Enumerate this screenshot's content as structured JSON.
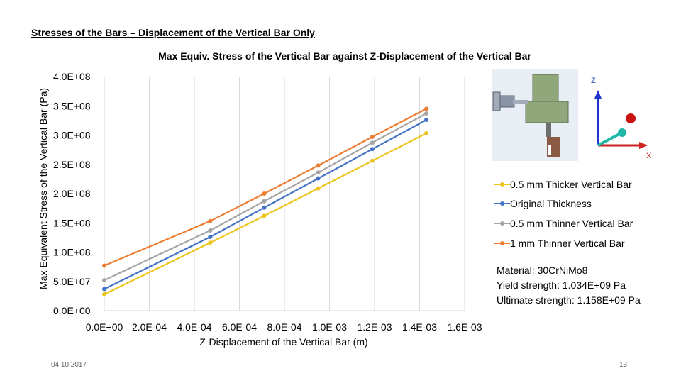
{
  "slide": {
    "title": "Stresses of the Bars – Displacement of the Vertical Bar Only",
    "date": "04.10.2017",
    "page_number": "13"
  },
  "material": {
    "line1": "Material: 30CrNiMo8",
    "line2": "Yield strength: 1.034E+09 Pa",
    "line3": "Ultimate strength: 1.158E+09 Pa"
  },
  "figure": {
    "axis_labels": {
      "z": "Z",
      "x": "X"
    }
  },
  "chart_data": {
    "type": "line",
    "title": "Max Equiv. Stress of the Vertical Bar against Z-Displacement of the Vertical Bar",
    "xlabel": "Z-Displacement of the Vertical Bar (m)",
    "ylabel": "Max Equivalent Stress of the Vertical Bar (Pa)",
    "xlim": [
      0,
      0.0016
    ],
    "ylim": [
      0,
      400000000
    ],
    "x_ticks": [
      0,
      0.0002,
      0.0004,
      0.0006,
      0.0008,
      0.001,
      0.0012,
      0.0014,
      0.0016
    ],
    "x_tick_labels": [
      "0.0E+00",
      "2.0E-04",
      "4.0E-04",
      "6.0E-04",
      "8.0E-04",
      "1.0E-03",
      "1.2E-03",
      "1.4E-03",
      "1.6E-03"
    ],
    "y_ticks": [
      0,
      50000000,
      100000000,
      150000000,
      200000000,
      250000000,
      300000000,
      350000000,
      400000000
    ],
    "y_tick_labels": [
      "0.0E+00",
      "5.0E+07",
      "1.0E+08",
      "1.5E+08",
      "2.0E+08",
      "2.5E+08",
      "3.0E+08",
      "3.5E+08",
      "4.0E+08"
    ],
    "grid": "vertical",
    "legend_position": "right",
    "series": [
      {
        "name": "0.5 mm Thicker Vertical Bar",
        "color": "#ecc51c",
        "x": [
          0,
          0.00047,
          0.00071,
          0.00095,
          0.00119,
          0.00143
        ],
        "y": [
          28000000,
          116000000,
          162000000,
          209000000,
          256000000,
          303000000
        ]
      },
      {
        "name": "Original Thickness",
        "color": "#4472c4",
        "x": [
          0,
          0.00047,
          0.00071,
          0.00095,
          0.00119,
          0.00143
        ],
        "y": [
          37000000,
          126000000,
          176000000,
          226000000,
          276000000,
          326000000
        ]
      },
      {
        "name": "0.5 mm Thinner Vertical Bar",
        "color": "#a5a5a5",
        "x": [
          0,
          0.00047,
          0.00071,
          0.00095,
          0.00119,
          0.00143
        ],
        "y": [
          52000000,
          137000000,
          187000000,
          236000000,
          287000000,
          337000000
        ]
      },
      {
        "name": "1 mm Thinner Vertical Bar",
        "color": "#ed7d31",
        "x": [
          0,
          0.00047,
          0.00071,
          0.00095,
          0.00119,
          0.00143
        ],
        "y": [
          77000000,
          153000000,
          200000000,
          248000000,
          297000000,
          345000000
        ]
      }
    ]
  }
}
